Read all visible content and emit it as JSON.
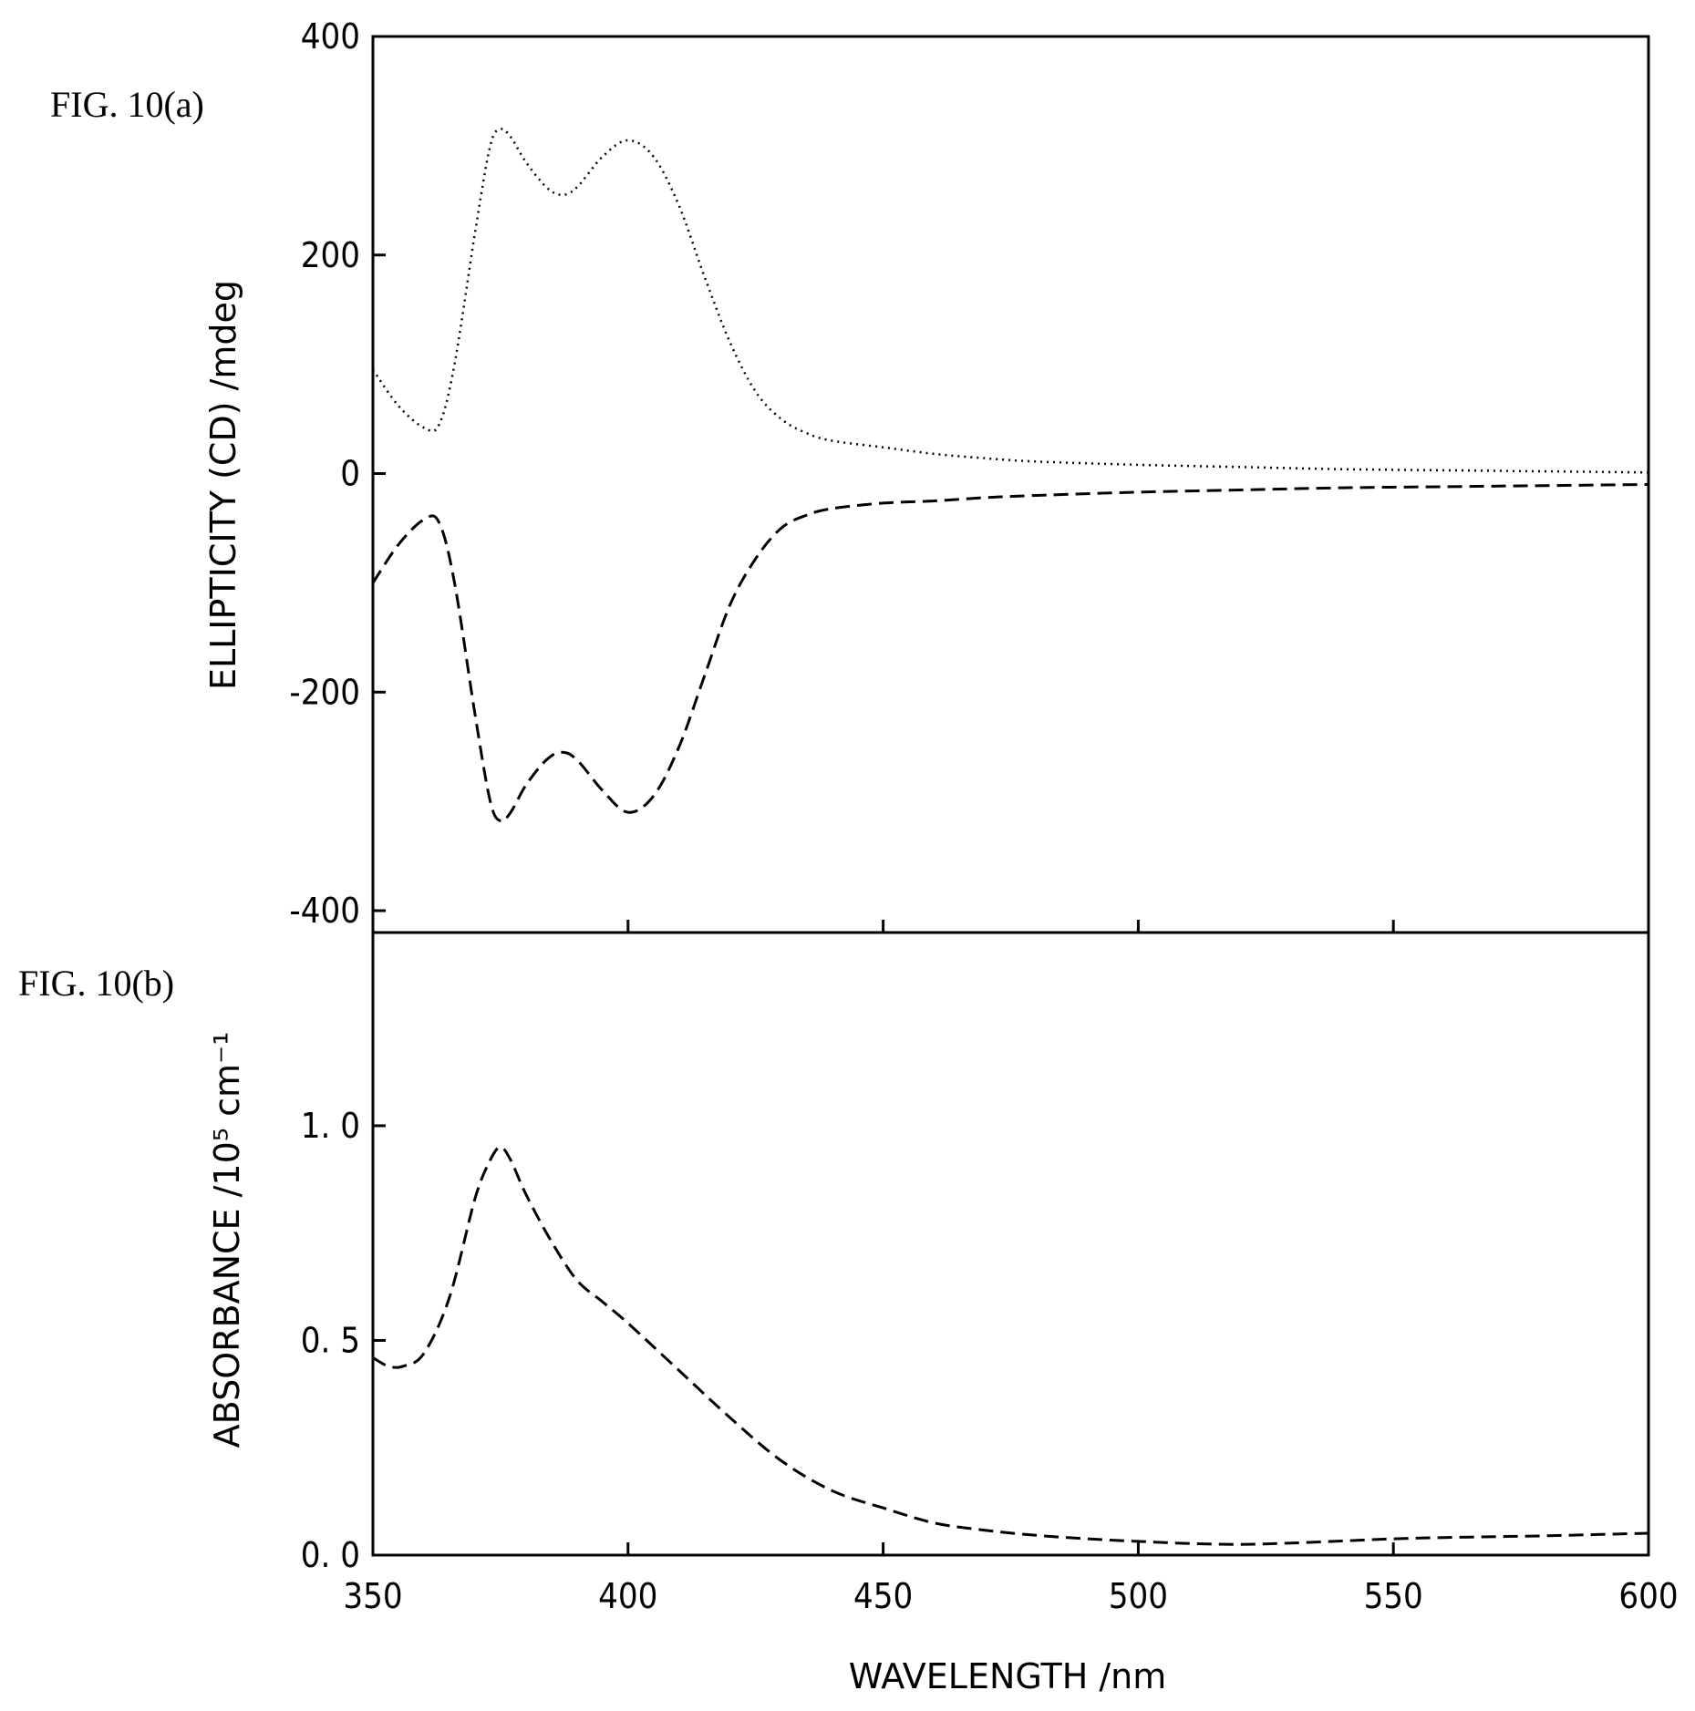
{
  "figure": {
    "panel_a_label": "FIG. 10(a)",
    "panel_b_label": "FIG. 10(b)"
  },
  "chart_data": [
    {
      "type": "line",
      "panel": "FIG. 10(a)",
      "xlabel": "WAVELENGTH /nm",
      "ylabel": "ELLIPTICITY (CD) /mdeg",
      "xlim": [
        350,
        600
      ],
      "ylim": [
        -420,
        400
      ],
      "x_ticks": [
        350,
        400,
        450,
        500,
        550,
        600
      ],
      "y_ticks": [
        -400,
        -200,
        0,
        200,
        400
      ],
      "y_tick_labels": [
        "-400",
        "-200",
        "0",
        "200",
        "400"
      ],
      "grid": false,
      "series": [
        {
          "style": "dotted",
          "x": [
            350,
            355,
            360,
            363,
            366,
            370,
            373,
            375,
            377,
            380,
            384,
            387,
            390,
            395,
            400,
            405,
            410,
            415,
            420,
            425,
            430,
            435,
            440,
            450,
            460,
            470,
            480,
            500,
            520,
            540,
            560,
            580,
            600
          ],
          "values": [
            95,
            62,
            42,
            45,
            100,
            220,
            300,
            315,
            308,
            285,
            262,
            255,
            262,
            290,
            305,
            290,
            245,
            180,
            120,
            75,
            50,
            37,
            30,
            24,
            18,
            14,
            11,
            8,
            6,
            4,
            3,
            2,
            1
          ]
        },
        {
          "style": "dashed",
          "x": [
            350,
            355,
            360,
            363,
            366,
            370,
            373,
            375,
            377,
            380,
            384,
            387,
            390,
            395,
            400,
            405,
            410,
            415,
            420,
            425,
            430,
            435,
            440,
            450,
            460,
            470,
            480,
            500,
            520,
            540,
            560,
            580,
            600
          ],
          "values": [
            -100,
            -65,
            -42,
            -45,
            -100,
            -220,
            -300,
            -318,
            -310,
            -285,
            -262,
            -255,
            -262,
            -290,
            -310,
            -295,
            -250,
            -185,
            -120,
            -78,
            -50,
            -38,
            -32,
            -27,
            -25,
            -22,
            -20,
            -17,
            -15,
            -13,
            -12,
            -11,
            -10
          ]
        }
      ]
    },
    {
      "type": "line",
      "panel": "FIG. 10(b)",
      "xlabel": "WAVELENGTH /nm",
      "ylabel": "ABSORBANCE /10⁵ cm⁻¹",
      "xlim": [
        350,
        600
      ],
      "ylim": [
        0,
        1.45
      ],
      "x_ticks": [
        350,
        400,
        450,
        500,
        550,
        600
      ],
      "x_tick_labels": [
        "350",
        "400",
        "450",
        "500",
        "550",
        "600"
      ],
      "y_ticks": [
        0,
        0.5,
        1.0
      ],
      "y_tick_labels": [
        "0. 0",
        "0. 5",
        "1. 0"
      ],
      "grid": false,
      "series": [
        {
          "style": "dashed",
          "x": [
            350,
            353,
            356,
            360,
            365,
            370,
            373,
            375,
            377,
            380,
            385,
            390,
            395,
            400,
            410,
            420,
            430,
            440,
            450,
            460,
            470,
            480,
            490,
            500,
            510,
            520,
            530,
            540,
            550,
            560,
            570,
            580,
            590,
            600
          ],
          "values": [
            0.46,
            0.44,
            0.44,
            0.47,
            0.6,
            0.83,
            0.92,
            0.95,
            0.92,
            0.84,
            0.73,
            0.64,
            0.59,
            0.54,
            0.43,
            0.32,
            0.22,
            0.15,
            0.11,
            0.075,
            0.058,
            0.046,
            0.038,
            0.032,
            0.027,
            0.025,
            0.028,
            0.033,
            0.038,
            0.041,
            0.043,
            0.045,
            0.048,
            0.051
          ]
        }
      ]
    }
  ]
}
